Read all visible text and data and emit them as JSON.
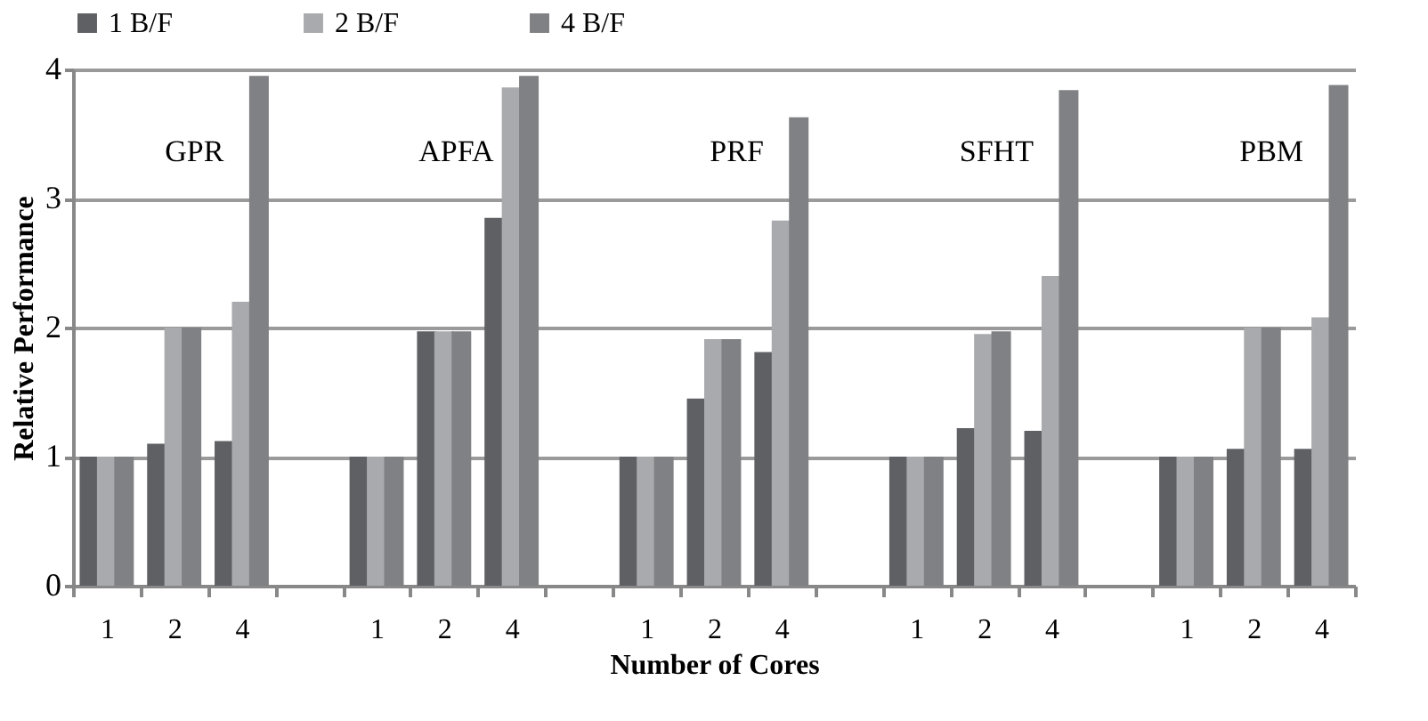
{
  "chart_data": {
    "type": "bar",
    "xlabel": "Number of Cores",
    "ylabel": "Relative Performance",
    "categories": [
      "1",
      "2",
      "4",
      null,
      "1",
      "2",
      "4",
      null,
      "1",
      "2",
      "4",
      null,
      "1",
      "2",
      "4",
      null,
      "1",
      "2",
      "4"
    ],
    "series": [
      {
        "name": "1 B/F",
        "color": "#5f6064",
        "values": [
          1,
          1.1,
          1.12,
          null,
          1,
          1.97,
          2.85,
          null,
          1,
          1.45,
          1.81,
          null,
          1,
          1.22,
          1.2,
          null,
          1,
          1.06,
          1.06
        ]
      },
      {
        "name": "2 B/F",
        "color": "#a9aaad",
        "values": [
          1,
          2.0,
          2.2,
          null,
          1,
          1.97,
          3.86,
          null,
          1,
          1.91,
          2.83,
          null,
          1,
          1.95,
          2.4,
          null,
          1,
          2.0,
          2.08
        ]
      },
      {
        "name": "4 B/F",
        "color": "#808184",
        "values": [
          1,
          2.0,
          3.95,
          null,
          1,
          1.97,
          3.95,
          null,
          1,
          1.91,
          3.63,
          null,
          1,
          1.97,
          3.84,
          null,
          1,
          2.0,
          3.88
        ]
      }
    ],
    "annotations": [
      "GPR",
      "APFA",
      "PRF",
      "SFHT",
      "PBM"
    ],
    "ylim": [
      0,
      4
    ],
    "yticks": [
      0,
      1,
      2,
      3,
      4
    ],
    "grid": "y",
    "legend": "top"
  }
}
